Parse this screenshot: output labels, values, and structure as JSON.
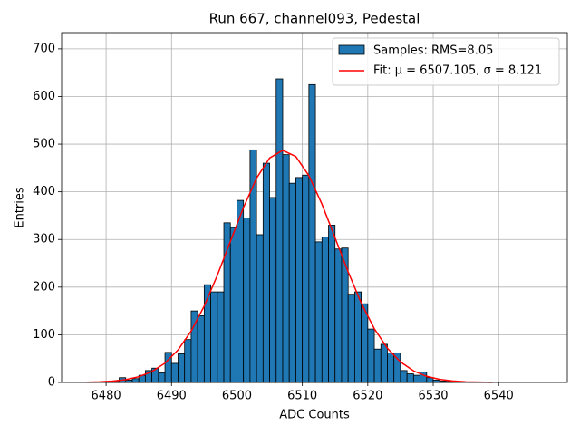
{
  "chart_data": {
    "type": "histogram",
    "title": "Run 667, channel093, Pedestal",
    "x_label": "ADC Counts",
    "y_label": "Entries",
    "name": "Samples: RMS=8.05",
    "color": "#1f77b4",
    "edge_color": "#000000",
    "bins": [
      6480,
      6481,
      6482,
      6483,
      6484,
      6485,
      6486,
      6487,
      6488,
      6489,
      6490,
      6491,
      6492,
      6493,
      6494,
      6495,
      6496,
      6497,
      6498,
      6499,
      6500,
      6501,
      6502,
      6503,
      6504,
      6505,
      6506,
      6507,
      6508,
      6509,
      6510,
      6511,
      6512,
      6513,
      6514,
      6515,
      6516,
      6517,
      6518,
      6519,
      6520,
      6521,
      6522,
      6523,
      6524,
      6525,
      6526,
      6527,
      6528,
      6529,
      6530,
      6531,
      6532,
      6533
    ],
    "values": [
      2,
      3,
      10,
      5,
      8,
      15,
      25,
      30,
      20,
      63,
      40,
      60,
      90,
      150,
      140,
      205,
      190,
      190,
      335,
      325,
      382,
      345,
      488,
      310,
      460,
      388,
      637,
      478,
      418,
      430,
      435,
      625,
      295,
      305,
      330,
      280,
      282,
      185,
      190,
      165,
      112,
      70,
      80,
      62,
      62,
      25,
      18,
      15,
      22,
      10,
      5,
      3,
      2
    ],
    "fit": {
      "name": "Fit: μ = 6507.105, σ = 8.121",
      "color": "#ff0000",
      "x": [
        6477,
        6479,
        6481,
        6483,
        6485,
        6487,
        6489,
        6491,
        6493,
        6495,
        6497,
        6499,
        6501,
        6503,
        6505,
        6507,
        6509,
        6511,
        6513,
        6515,
        6517,
        6519,
        6521,
        6523,
        6525,
        6527,
        6529,
        6531,
        6533,
        6535,
        6537,
        6539
      ],
      "values": [
        0.5,
        1.2,
        2.8,
        5.9,
        12,
        22.7,
        40.5,
        68.1,
        107.7,
        160.3,
        224.6,
        296,
        367,
        428.6,
        470.9,
        487,
        474,
        434,
        374,
        303.6,
        232,
        166.5,
        112.7,
        71.8,
        43,
        24.2,
        12.8,
        6.4,
        3,
        1.3,
        0.6,
        0.2
      ]
    },
    "xlim": [
      6473.2,
      6550.5
    ],
    "ylim": [
      0,
      734
    ],
    "xticks": [
      6480,
      6490,
      6500,
      6510,
      6520,
      6530,
      6540
    ],
    "yticks": [
      0,
      100,
      200,
      300,
      400,
      500,
      600,
      700
    ],
    "grid": true,
    "legend": "upper right"
  }
}
